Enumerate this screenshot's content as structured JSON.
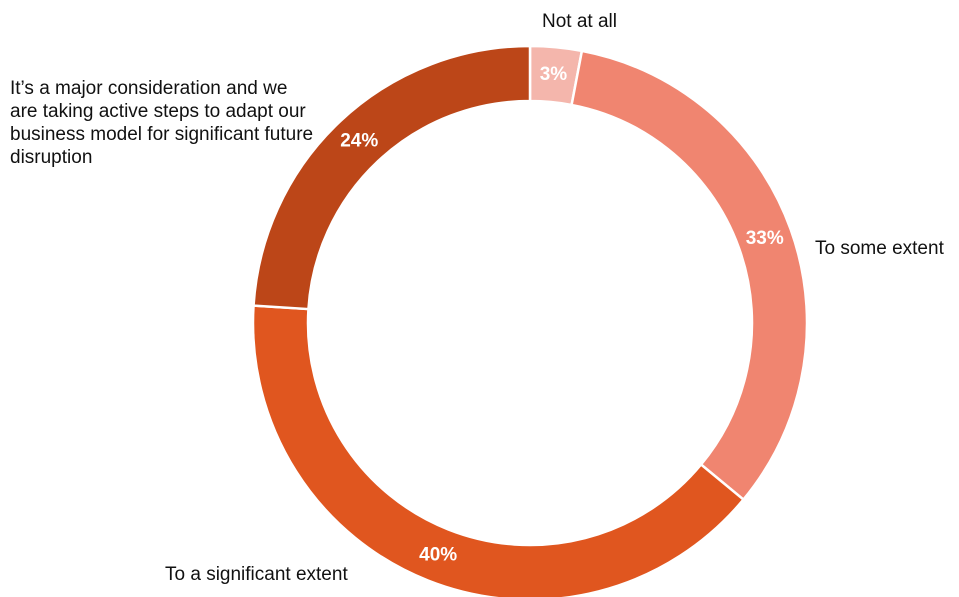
{
  "chart_data": {
    "type": "pie",
    "subtype": "donut",
    "categories": [
      "Not at all",
      "To some extent",
      "To a significant extent",
      "It’s a major consideration and we are taking active steps to adapt our business model for significant future disruption"
    ],
    "values": [
      3,
      33,
      40,
      24
    ],
    "value_labels": [
      "3%",
      "33%",
      "40%",
      "24%"
    ],
    "colors": [
      "#f4b6ac",
      "#f08570",
      "#e0561f",
      "#bc4618"
    ],
    "start_angle_deg": 0,
    "direction": "clockwise",
    "legend": "none"
  }
}
